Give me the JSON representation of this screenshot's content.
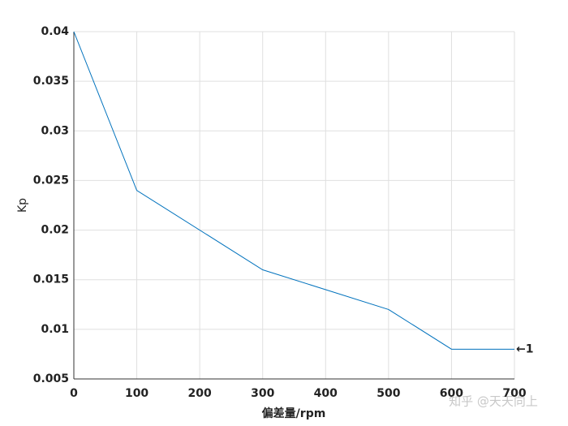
{
  "chart_data": {
    "type": "line",
    "x_label": "偏差量/rpm",
    "y_label": "Kp",
    "x": [
      0,
      100,
      300,
      500,
      600,
      700
    ],
    "series": [
      {
        "color": "#0072bd",
        "values": [
          0.04,
          0.024,
          0.016,
          0.012,
          0.008,
          0.008
        ]
      }
    ],
    "xlim": [
      0,
      700
    ],
    "xticks": [
      0,
      100,
      200,
      300,
      400,
      500,
      600,
      700
    ],
    "ylim": [
      0.005,
      0.04
    ],
    "yticks": [
      0.005,
      0.01,
      0.015,
      0.02,
      0.025,
      0.03,
      0.035,
      0.04
    ],
    "grid": true,
    "annotation": "←1",
    "watermark": "知乎 @天天向上"
  }
}
